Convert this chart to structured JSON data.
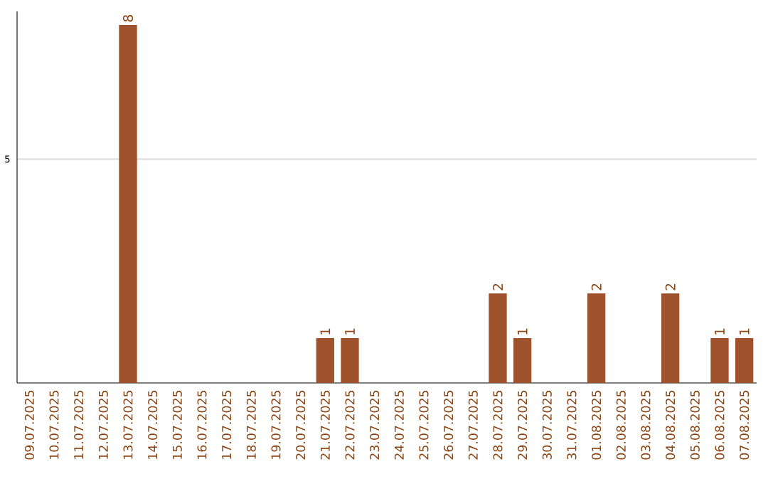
{
  "chart_data": {
    "type": "bar",
    "categories": [
      "09.07.2025",
      "10.07.2025",
      "11.07.2025",
      "12.07.2025",
      "13.07.2025",
      "14.07.2025",
      "15.07.2025",
      "16.07.2025",
      "17.07.2025",
      "18.07.2025",
      "19.07.2025",
      "20.07.2025",
      "21.07.2025",
      "22.07.2025",
      "23.07.2025",
      "24.07.2025",
      "25.07.2025",
      "26.07.2025",
      "27.07.2025",
      "28.07.2025",
      "29.07.2025",
      "30.07.2025",
      "31.07.2025",
      "01.08.2025",
      "02.08.2025",
      "03.08.2025",
      "04.08.2025",
      "05.08.2025",
      "06.08.2025",
      "07.08.2025"
    ],
    "values": [
      0,
      0,
      0,
      0,
      8,
      0,
      0,
      0,
      0,
      0,
      0,
      0,
      1,
      1,
      0,
      0,
      0,
      0,
      0,
      2,
      1,
      0,
      0,
      2,
      0,
      0,
      2,
      0,
      1,
      1
    ],
    "value_labels": [
      null,
      null,
      null,
      null,
      "8",
      null,
      null,
      null,
      null,
      null,
      null,
      null,
      "1",
      "1",
      null,
      null,
      null,
      null,
      null,
      "2",
      "1",
      null,
      null,
      "2",
      null,
      null,
      "2",
      null,
      "1",
      "1"
    ],
    "color": "#a0522d",
    "ylim": [
      0,
      8.3
    ],
    "yticks": [
      5
    ],
    "grid": "y"
  }
}
